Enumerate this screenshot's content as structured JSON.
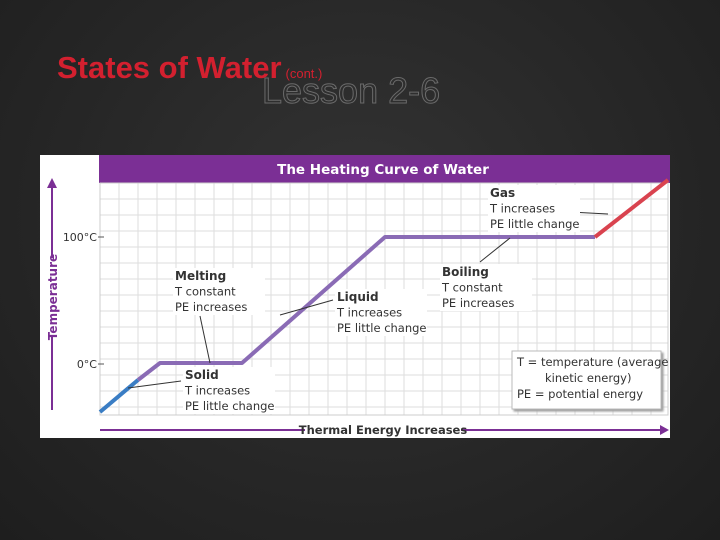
{
  "title": "States of Water",
  "title_note": "(cont.)",
  "lesson": "Lesson 2-6",
  "figure": {
    "title": "The Heating Curve of Water",
    "y_axis_label": "Temperature",
    "x_axis_label": "Thermal Energy Increases",
    "y_ticks": [
      "100°C",
      "0°C"
    ],
    "annotations": [
      {
        "heading": "Gas",
        "lines": [
          "T increases",
          "PE little change"
        ]
      },
      {
        "heading": "Melting",
        "lines": [
          "T constant",
          "PE increases"
        ]
      },
      {
        "heading": "Liquid",
        "lines": [
          "T increases",
          "PE little change"
        ]
      },
      {
        "heading": "Boiling",
        "lines": [
          "T constant",
          "PE increases"
        ]
      },
      {
        "heading": "Solid",
        "lines": [
          "T increases",
          "PE little change"
        ]
      }
    ],
    "key": [
      "T = temperature (average",
      "kinetic energy)",
      "PE = potential energy"
    ]
  }
}
